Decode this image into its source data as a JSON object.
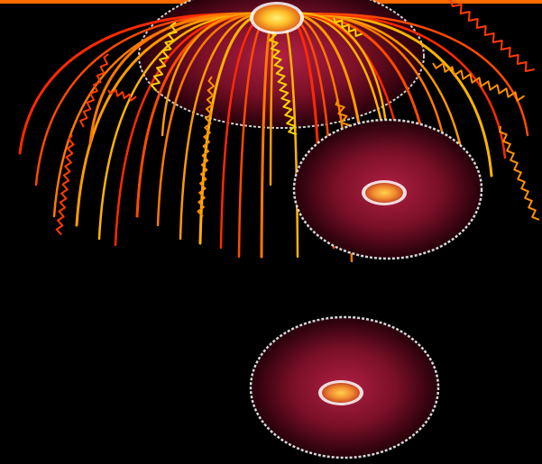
{
  "scene": {
    "background": "#000000",
    "top_bar_color": "#ff6a00",
    "sphere_rim_color": "#cfcfcf",
    "sphere_body_dark": "#2a0008",
    "sphere_body_mid": "#6e0c22",
    "sphere_body_light": "#b01f43",
    "core_inner": "#ffd24a",
    "core_outer": "#e2602a",
    "stroke_palette": [
      "#ff2a00",
      "#ff4a00",
      "#ff7800",
      "#ff9a00",
      "#ffb400"
    ],
    "wave_palette": [
      "#ffd400",
      "#ff9000",
      "#ff3c00"
    ]
  }
}
